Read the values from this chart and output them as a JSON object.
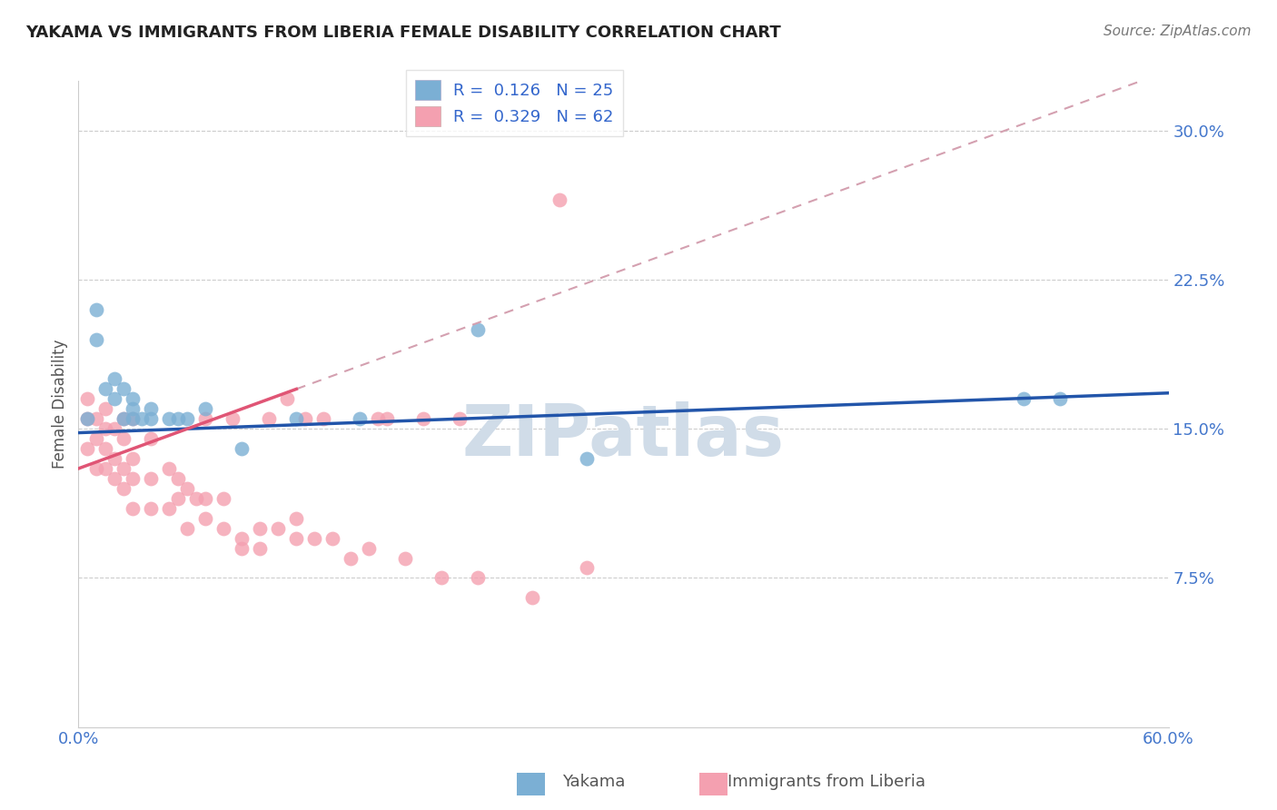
{
  "title": "YAKAMA VS IMMIGRANTS FROM LIBERIA FEMALE DISABILITY CORRELATION CHART",
  "source": "Source: ZipAtlas.com",
  "ylabel_label": "Female Disability",
  "xmin": 0.0,
  "xmax": 0.6,
  "ymin": 0.0,
  "ymax": 0.325,
  "xtick_positions": [
    0.0,
    0.12,
    0.24,
    0.36,
    0.48,
    0.6
  ],
  "xtick_labels": [
    "0.0%",
    "",
    "",
    "",
    "",
    "60.0%"
  ],
  "ytick_positions": [
    0.075,
    0.15,
    0.225,
    0.3
  ],
  "ytick_labels": [
    "7.5%",
    "15.0%",
    "22.5%",
    "30.0%"
  ],
  "grid_color": "#cccccc",
  "background_color": "#ffffff",
  "watermark_text": "ZIPatlas",
  "watermark_color": "#d0dce8",
  "legend_R_yakama": "0.126",
  "legend_N_yakama": "25",
  "legend_R_liberia": "0.329",
  "legend_N_liberia": "62",
  "yakama_color": "#7bafd4",
  "liberia_color": "#f4a0b0",
  "trendline_yakama_color": "#2255aa",
  "trendline_liberia_color": "#e05575",
  "trendline_dashed_color": "#d4a0b0",
  "yakama_x": [
    0.005,
    0.01,
    0.01,
    0.015,
    0.02,
    0.02,
    0.025,
    0.025,
    0.03,
    0.03,
    0.03,
    0.035,
    0.04,
    0.04,
    0.05,
    0.055,
    0.06,
    0.07,
    0.09,
    0.12,
    0.155,
    0.22,
    0.28,
    0.52,
    0.54
  ],
  "yakama_y": [
    0.155,
    0.195,
    0.21,
    0.17,
    0.165,
    0.175,
    0.155,
    0.17,
    0.16,
    0.165,
    0.155,
    0.155,
    0.16,
    0.155,
    0.155,
    0.155,
    0.155,
    0.16,
    0.14,
    0.155,
    0.155,
    0.2,
    0.135,
    0.165,
    0.165
  ],
  "liberia_x": [
    0.005,
    0.005,
    0.005,
    0.01,
    0.01,
    0.01,
    0.015,
    0.015,
    0.015,
    0.015,
    0.02,
    0.02,
    0.02,
    0.025,
    0.025,
    0.025,
    0.025,
    0.03,
    0.03,
    0.03,
    0.03,
    0.04,
    0.04,
    0.04,
    0.05,
    0.05,
    0.055,
    0.055,
    0.06,
    0.06,
    0.065,
    0.07,
    0.07,
    0.07,
    0.08,
    0.08,
    0.085,
    0.09,
    0.09,
    0.1,
    0.1,
    0.105,
    0.11,
    0.115,
    0.12,
    0.12,
    0.125,
    0.13,
    0.135,
    0.14,
    0.15,
    0.16,
    0.165,
    0.17,
    0.18,
    0.19,
    0.2,
    0.21,
    0.22,
    0.25,
    0.265,
    0.28
  ],
  "liberia_y": [
    0.14,
    0.155,
    0.165,
    0.13,
    0.145,
    0.155,
    0.13,
    0.14,
    0.15,
    0.16,
    0.125,
    0.135,
    0.15,
    0.12,
    0.13,
    0.145,
    0.155,
    0.11,
    0.125,
    0.135,
    0.155,
    0.11,
    0.125,
    0.145,
    0.11,
    0.13,
    0.115,
    0.125,
    0.1,
    0.12,
    0.115,
    0.105,
    0.115,
    0.155,
    0.1,
    0.115,
    0.155,
    0.09,
    0.095,
    0.09,
    0.1,
    0.155,
    0.1,
    0.165,
    0.095,
    0.105,
    0.155,
    0.095,
    0.155,
    0.095,
    0.085,
    0.09,
    0.155,
    0.155,
    0.085,
    0.155,
    0.075,
    0.155,
    0.075,
    0.065,
    0.265,
    0.08
  ]
}
